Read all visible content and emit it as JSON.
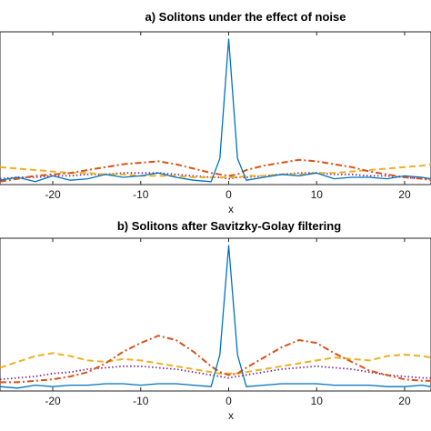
{
  "chart_data": [
    {
      "type": "line",
      "title": "a) Solitons under the effect of noise",
      "xlabel": "x",
      "ylabel": "",
      "xlim": [
        -26,
        23
      ],
      "ylim": [
        0,
        1.05
      ],
      "xticks": [
        -20,
        -10,
        0,
        10,
        20
      ],
      "x": [
        -26,
        -24,
        -22,
        -20,
        -18,
        -16,
        -14,
        -12,
        -10,
        -8,
        -6,
        -4,
        -2,
        -1,
        0,
        1,
        2,
        4,
        6,
        8,
        10,
        12,
        14,
        16,
        18,
        20,
        22,
        23
      ],
      "series": [
        {
          "style": "solid",
          "color": "#0072BD",
          "values": [
            0.03,
            0.05,
            0.02,
            0.06,
            0.03,
            0.04,
            0.07,
            0.05,
            0.06,
            0.08,
            0.05,
            0.03,
            0.02,
            0.18,
            1.0,
            0.18,
            0.03,
            0.05,
            0.07,
            0.06,
            0.08,
            0.04,
            0.05,
            0.05,
            0.04,
            0.06,
            0.05,
            0.04
          ]
        },
        {
          "style": "dashdot",
          "color": "#D95319",
          "values": [
            0.02,
            0.04,
            0.06,
            0.07,
            0.08,
            0.1,
            0.12,
            0.14,
            0.15,
            0.16,
            0.14,
            0.11,
            0.08,
            0.07,
            0.06,
            0.07,
            0.1,
            0.13,
            0.15,
            0.17,
            0.16,
            0.14,
            0.12,
            0.09,
            0.07,
            0.05,
            0.04,
            0.03
          ]
        },
        {
          "style": "dashed",
          "color": "#EDB120",
          "values": [
            0.12,
            0.11,
            0.1,
            0.09,
            0.08,
            0.08,
            0.07,
            0.07,
            0.06,
            0.06,
            0.06,
            0.05,
            0.05,
            0.05,
            0.05,
            0.05,
            0.06,
            0.06,
            0.07,
            0.07,
            0.08,
            0.08,
            0.09,
            0.1,
            0.11,
            0.12,
            0.13,
            0.14
          ]
        },
        {
          "style": "dotted",
          "color": "#7E2F8E",
          "values": [
            0.04,
            0.05,
            0.05,
            0.06,
            0.06,
            0.07,
            0.07,
            0.08,
            0.08,
            0.08,
            0.07,
            0.06,
            0.05,
            0.05,
            0.04,
            0.05,
            0.05,
            0.06,
            0.07,
            0.08,
            0.08,
            0.07,
            0.07,
            0.06,
            0.06,
            0.05,
            0.04,
            0.04
          ]
        }
      ]
    },
    {
      "type": "line",
      "title": "b) Solitons after Savitzky-Golay filtering",
      "xlabel": "x",
      "ylabel": "",
      "xlim": [
        -26,
        23
      ],
      "ylim": [
        0,
        1.05
      ],
      "xticks": [
        -20,
        -10,
        0,
        10,
        20
      ],
      "x": [
        -26,
        -24,
        -22,
        -20,
        -18,
        -16,
        -14,
        -12,
        -10,
        -8,
        -6,
        -4,
        -2,
        -1,
        0,
        1,
        2,
        4,
        6,
        8,
        10,
        12,
        14,
        16,
        18,
        20,
        22,
        23
      ],
      "series": [
        {
          "style": "solid",
          "color": "#0072BD",
          "values": [
            0.03,
            0.02,
            0.04,
            0.03,
            0.04,
            0.04,
            0.05,
            0.05,
            0.04,
            0.05,
            0.05,
            0.04,
            0.03,
            0.25,
            1.0,
            0.25,
            0.03,
            0.04,
            0.05,
            0.05,
            0.05,
            0.04,
            0.04,
            0.04,
            0.03,
            0.03,
            0.04,
            0.03
          ]
        },
        {
          "style": "dashdot",
          "color": "#D95319",
          "values": [
            0.06,
            0.06,
            0.07,
            0.08,
            0.1,
            0.13,
            0.19,
            0.27,
            0.33,
            0.38,
            0.35,
            0.27,
            0.17,
            0.13,
            0.11,
            0.12,
            0.16,
            0.23,
            0.3,
            0.35,
            0.33,
            0.26,
            0.2,
            0.14,
            0.11,
            0.08,
            0.07,
            0.07
          ]
        },
        {
          "style": "dashed",
          "color": "#EDB120",
          "values": [
            0.16,
            0.2,
            0.24,
            0.26,
            0.24,
            0.21,
            0.2,
            0.22,
            0.21,
            0.19,
            0.17,
            0.15,
            0.13,
            0.12,
            0.12,
            0.12,
            0.13,
            0.15,
            0.17,
            0.19,
            0.21,
            0.23,
            0.22,
            0.21,
            0.24,
            0.25,
            0.24,
            0.23
          ]
        },
        {
          "style": "dotted",
          "color": "#7E2F8E",
          "values": [
            0.08,
            0.09,
            0.1,
            0.12,
            0.13,
            0.15,
            0.16,
            0.17,
            0.17,
            0.16,
            0.15,
            0.13,
            0.11,
            0.1,
            0.09,
            0.1,
            0.11,
            0.13,
            0.15,
            0.16,
            0.17,
            0.16,
            0.15,
            0.13,
            0.11,
            0.1,
            0.09,
            0.09
          ]
        }
      ]
    }
  ]
}
